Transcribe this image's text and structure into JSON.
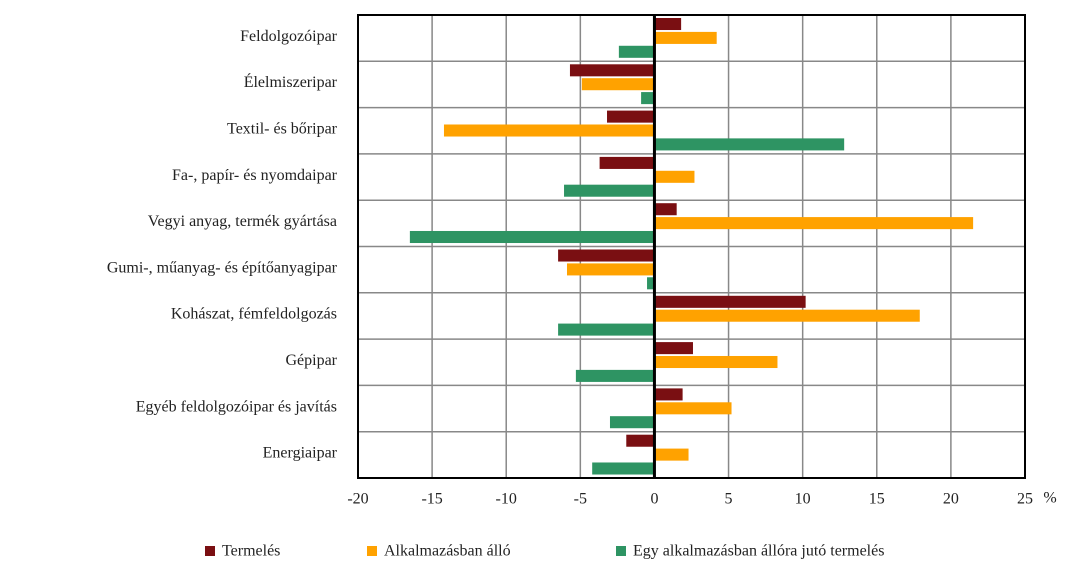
{
  "chart_data": {
    "type": "bar",
    "orientation": "horizontal",
    "categories": [
      "Feldolgozóipar",
      "Élelmiszeripar",
      "Textil- és bőripar",
      "Fa-, papír- és nyomdaipar",
      "Vegyi anyag, termék gyártása",
      "Gumi-, műanyag- és építőanyagipar",
      "Kohászat, fémfeldolgozás",
      "Gépipar",
      "Egyéb feldolgozóipar és javítás",
      "Energiaipar"
    ],
    "series": [
      {
        "name": "Termelés",
        "color": "#7a0f12",
        "values": [
          1.8,
          -5.7,
          -3.2,
          -3.7,
          1.5,
          -6.5,
          10.2,
          2.6,
          1.9,
          -1.9
        ]
      },
      {
        "name": "Alkalmazásban álló",
        "color": "#ffa200",
        "values": [
          4.2,
          -4.9,
          -14.2,
          2.7,
          21.5,
          -5.9,
          17.9,
          8.3,
          5.2,
          2.3
        ]
      },
      {
        "name": "Egy alkalmazásban állóra jutó termelés",
        "color": "#2e9463",
        "values": [
          -2.4,
          -0.9,
          12.8,
          -6.1,
          -16.5,
          -0.5,
          -6.5,
          -5.3,
          -3.0,
          -4.2
        ]
      }
    ],
    "xlabel": "%",
    "xlim": [
      -20,
      25
    ],
    "xticks": [
      -20,
      -15,
      -10,
      -5,
      0,
      5,
      10,
      15,
      20,
      25
    ],
    "grid": true,
    "legend": "bottom"
  }
}
